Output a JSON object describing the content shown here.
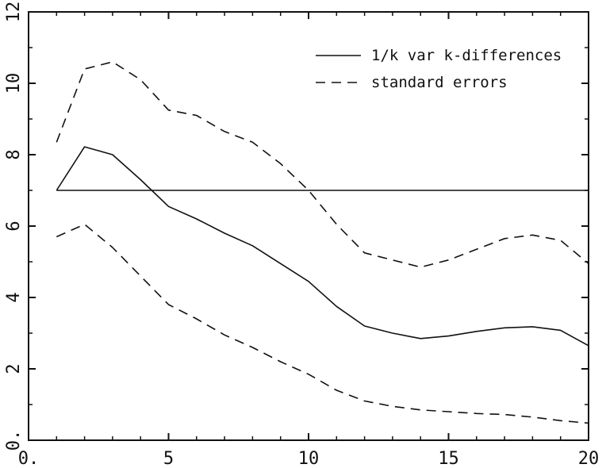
{
  "chart_data": {
    "type": "line",
    "title": "",
    "xlabel": "",
    "ylabel": "",
    "xlim": [
      0,
      20
    ],
    "ylim": [
      0,
      12
    ],
    "x_ticks": [
      {
        "value": 0,
        "label": "0."
      },
      {
        "value": 5,
        "label": "5"
      },
      {
        "value": 10,
        "label": "10"
      },
      {
        "value": 15,
        "label": "15"
      },
      {
        "value": 20,
        "label": "20"
      }
    ],
    "y_ticks": [
      {
        "value": 0,
        "label": "0."
      },
      {
        "value": 2,
        "label": "2"
      },
      {
        "value": 4,
        "label": "4"
      },
      {
        "value": 6,
        "label": "6"
      },
      {
        "value": 8,
        "label": "8"
      },
      {
        "value": 10,
        "label": "10"
      },
      {
        "value": 12,
        "label": "12"
      }
    ],
    "grid": false,
    "legend_position": "top-right",
    "x": [
      1,
      2,
      3,
      4,
      5,
      6,
      7,
      8,
      9,
      10,
      11,
      12,
      13,
      14,
      15,
      16,
      17,
      18,
      19,
      20
    ],
    "series": [
      {
        "name": "1/k var k-differences",
        "style": "solid",
        "values": [
          7.0,
          8.22,
          8.0,
          7.3,
          6.55,
          6.2,
          5.8,
          5.45,
          4.95,
          4.45,
          3.75,
          3.2,
          3.0,
          2.85,
          2.92,
          3.05,
          3.15,
          3.18,
          3.08,
          2.65
        ]
      },
      {
        "name": "standard errors",
        "style": "dashed",
        "values": [
          8.35,
          10.4,
          10.6,
          10.1,
          9.25,
          9.1,
          8.65,
          8.35,
          7.75,
          7.0,
          6.05,
          5.25,
          5.05,
          4.85,
          5.05,
          5.35,
          5.65,
          5.75,
          5.6,
          4.95
        ]
      },
      {
        "name": "",
        "style": "dashed",
        "values": [
          5.7,
          6.05,
          5.4,
          4.6,
          3.8,
          3.4,
          2.95,
          2.6,
          2.2,
          1.85,
          1.4,
          1.1,
          0.95,
          0.85,
          0.8,
          0.75,
          0.72,
          0.65,
          0.55,
          0.48
        ]
      },
      {
        "name": "",
        "style": "solid-reference",
        "values": [
          7.0,
          7.0,
          7.0,
          7.0,
          7.0,
          7.0,
          7.0,
          7.0,
          7.0,
          7.0,
          7.0,
          7.0,
          7.0,
          7.0,
          7.0,
          7.0,
          7.0,
          7.0,
          7.0,
          7.0
        ]
      }
    ],
    "legend": [
      {
        "label": "1/k var k-differences",
        "style": "solid"
      },
      {
        "label": "standard errors",
        "style": "dashed"
      }
    ]
  }
}
